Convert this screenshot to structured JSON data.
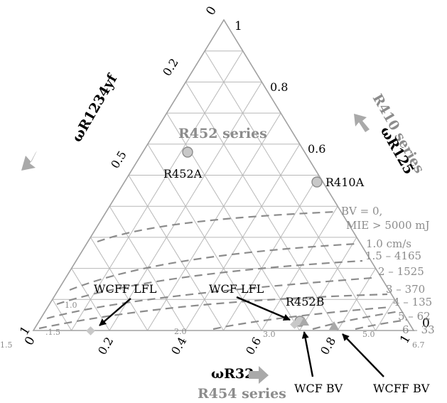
{
  "diagram": {
    "corner_labels": {
      "top_zero": "0",
      "top_one": "1",
      "left_one": "1",
      "left_zero": "0",
      "right_zero": "0",
      "right_one": "1"
    },
    "left_ticks": [
      "0.2",
      "0.5"
    ],
    "right_ticks": [
      "0.8",
      "0.6"
    ],
    "bottom_ticks": [
      "0.2",
      "0.4",
      "0.6",
      "0.8"
    ],
    "axes": {
      "left": "ωR1234yf",
      "right_primary": "ωR125",
      "right_series": "R410 series",
      "bottom_primary": "ωR32",
      "bottom_series": "R454 series"
    },
    "region_title": "R452 series",
    "points": {
      "r452a": "R452A",
      "r410a": "R410A",
      "r452b": "R452B"
    },
    "contour_labels": {
      "bv0_line1": "BV = 0,",
      "bv0_line2": "MIE > 5000 mJ",
      "c1": "1.0 cm/s",
      "c2": "1.5 – 4165",
      "c3": "2 – 1525",
      "c4": "3 – 370",
      "c5": "4 – 135",
      "c6": "5 – 62",
      "c7": "6 – 33",
      "c8": "6.7",
      "in_10": "1.0",
      "in_15": "1.5",
      "in_15b": ".1.5",
      "in_20": "2.0",
      "in_30": "3.0",
      "in_50": "5.0"
    },
    "callouts": {
      "wcff_lfl": "WCFF LFL",
      "wcf_lfl": "WCF LFL",
      "wcf_bv": "WCF BV",
      "wcff_bv": "WCFF BV"
    },
    "colors": {
      "grid": "#b8b8b8",
      "dashed": "#8c8c8c",
      "gray_text": "#8c8c8c",
      "arrow": "#a9a9a9",
      "marker": "#c8c8c8"
    }
  }
}
